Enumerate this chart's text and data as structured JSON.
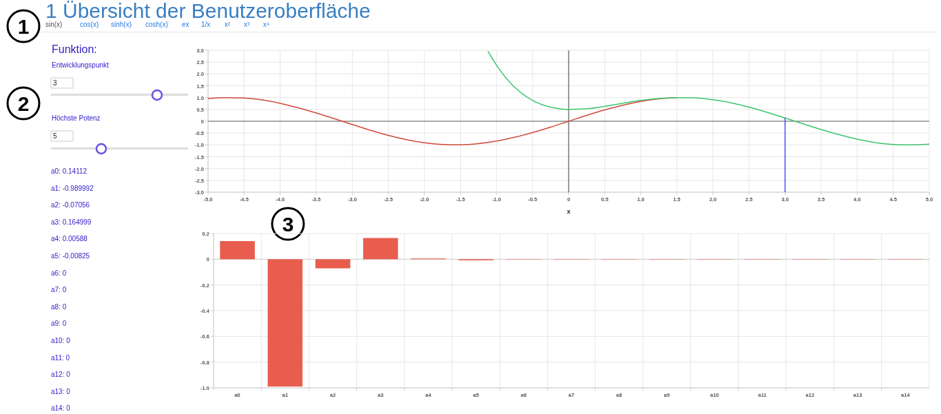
{
  "chart_data": [
    {
      "type": "other",
      "title": "1 Übersicht der Benutzeroberfläche",
      "annotations": [
        "sin(x)",
        "cos(x)",
        "sinh(x)",
        "cosh(x)",
        "ex",
        "1/x",
        "x²",
        "x³",
        "x⁴",
        "Funktion:",
        "Entwicklungspunkt",
        "3",
        "Höchste Potenz",
        "5",
        "a0: 0.14112",
        "a1: -0.989992",
        "a2: -0.07056",
        "a3: 0.164999",
        "a4: 0.00588",
        "a5: -0.00825",
        "a6: 0",
        "a7: 0",
        "a8: 0",
        "a9: 0",
        "a10: 0",
        "a11: 0",
        "a12: 0",
        "a13: 0",
        "a14: 0",
        "1",
        "2",
        "3"
      ]
    },
    {
      "type": "line",
      "xlabel": "x",
      "xlim": [
        -5,
        5
      ],
      "ylim": [
        -3,
        3
      ],
      "grid": true,
      "xticks": [
        {
          "value": -5,
          "label": "-5.0"
        },
        {
          "value": -4.5,
          "label": "-4.5"
        },
        {
          "value": -4,
          "label": "-4.0"
        },
        {
          "value": -3.5,
          "label": "-3.5"
        },
        {
          "value": -3,
          "label": "-3.0"
        },
        {
          "value": -2.5,
          "label": "-2.5"
        },
        {
          "value": -2,
          "label": "-2.0"
        },
        {
          "value": -1.5,
          "label": "-1.5"
        },
        {
          "value": -1,
          "label": "-1.0"
        },
        {
          "value": -0.5,
          "label": "-0.5"
        },
        0,
        0.5,
        {
          "value": 1,
          "label": "1.0"
        },
        1.5,
        {
          "value": 2,
          "label": "2.0"
        },
        2.5,
        {
          "value": 3,
          "label": "3.0"
        },
        3.5,
        {
          "value": 4,
          "label": "4.0"
        },
        4.5,
        {
          "value": 5,
          "label": "5.0"
        }
      ],
      "yticks": [
        {
          "value": -3,
          "label": "-3.0"
        },
        -2.5,
        {
          "value": -2,
          "label": "-2.0"
        },
        -1.5,
        {
          "value": -1,
          "label": "-1.0"
        },
        -0.5,
        0,
        0.5,
        {
          "value": 1,
          "label": "1.0"
        },
        1.5,
        {
          "value": 2,
          "label": "2.0"
        },
        2.5,
        {
          "value": 3,
          "label": "3.0"
        }
      ],
      "ref_lines": [
        {
          "axis": "x",
          "value": 0,
          "color": "#777777"
        },
        {
          "axis": "y",
          "value": 0,
          "color": "#8c8c8c"
        }
      ],
      "series": [
        {
          "color": "#d0483a",
          "x": [
            -5,
            -4.75,
            -4.5,
            -4.25,
            -4,
            -3.75,
            -3.5,
            -3.25,
            -3,
            -2.75,
            -2.5,
            -2.25,
            -2,
            -1.75,
            -1.5,
            -1.25,
            -1,
            -0.75,
            -0.5,
            -0.25,
            0,
            0.25,
            0.5,
            0.75,
            1,
            1.25,
            1.5
          ],
          "values": [
            0.96,
            1.0,
            0.98,
            0.9,
            0.76,
            0.57,
            0.35,
            0.11,
            -0.14,
            -0.38,
            -0.6,
            -0.78,
            -0.91,
            -0.98,
            -1.0,
            -0.95,
            -0.84,
            -0.68,
            -0.48,
            -0.25,
            0,
            0.25,
            0.48,
            0.68,
            0.84,
            0.95,
            1.0
          ]
        },
        {
          "color": "#3cc56e",
          "x": [
            -1.12,
            -1,
            -0.75,
            -0.5,
            -0.25,
            0,
            0.25,
            0.5,
            0.75,
            1,
            1.25,
            1.5,
            1.75,
            2,
            2.25,
            2.5,
            2.75,
            3,
            3.25,
            3.5,
            3.75,
            4,
            4.25,
            4.5,
            4.75,
            5
          ],
          "values": [
            2.97,
            2.37,
            1.44,
            0.88,
            0.6,
            0.5,
            0.53,
            0.63,
            0.76,
            0.88,
            0.96,
            1.0,
            0.99,
            0.91,
            0.78,
            0.6,
            0.38,
            0.14,
            -0.11,
            -0.35,
            -0.57,
            -0.76,
            -0.9,
            -0.98,
            -1.0,
            -0.97
          ]
        },
        {
          "color": "#4a4af0",
          "x": [
            3,
            3
          ],
          "values": [
            -3,
            0.14
          ]
        }
      ]
    },
    {
      "type": "bar",
      "categories": [
        "a0",
        "a1",
        "a2",
        "a3",
        "a4",
        "a5",
        "a6",
        "a7",
        "a8",
        "a9",
        "a10",
        "a11",
        "a12",
        "a13",
        "a14"
      ],
      "values": [
        0.14112,
        -0.989992,
        -0.07056,
        0.164999,
        0.00588,
        -0.00825,
        0,
        0,
        0,
        0,
        0,
        0,
        0,
        0,
        0
      ],
      "color": "#e85d4e",
      "ylim": [
        -1,
        0.2
      ],
      "grid": true,
      "yticks": [
        {
          "value": -1,
          "label": "-1.0"
        },
        -0.8,
        -0.6,
        -0.4,
        -0.2,
        0,
        0.2
      ]
    }
  ]
}
